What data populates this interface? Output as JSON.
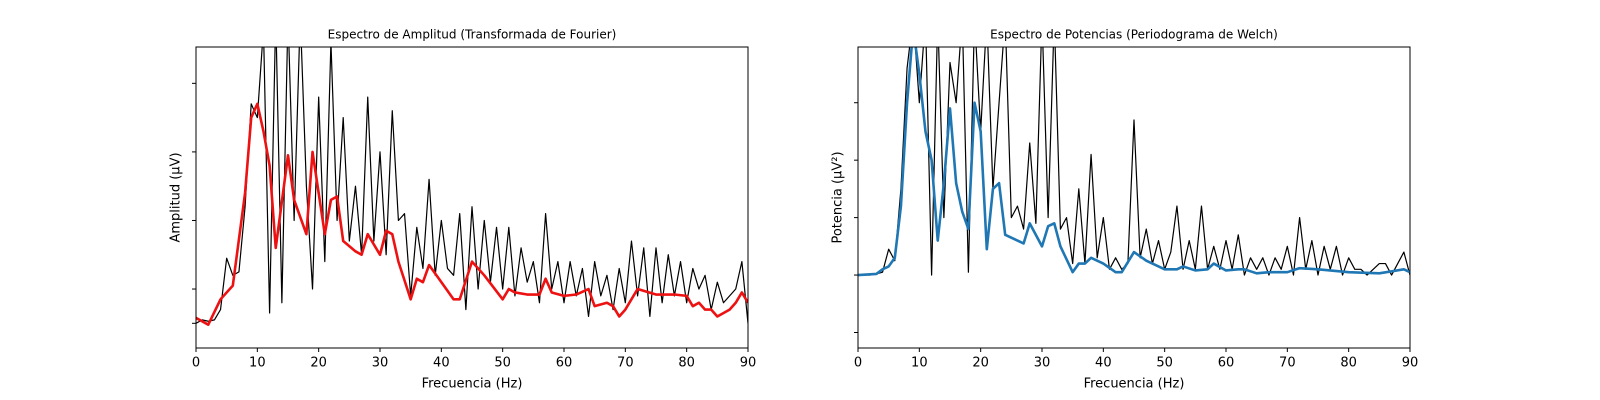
{
  "chart_data": [
    {
      "type": "line",
      "title": "Espectro de Amplitud (Transformada de Fourier)",
      "xlabel": "Frecuencia (Hz)",
      "ylabel": "Amplitud (μV)",
      "xlim": [
        0,
        90
      ],
      "xticks": [
        0,
        10,
        20,
        30,
        40,
        50,
        60,
        70,
        80,
        90
      ],
      "ylim": [
        -0.36,
        4.03
      ],
      "yticks": [
        0,
        0.5,
        1.5,
        2.5,
        3.5
      ],
      "series": [
        {
          "color": "#000000",
          "width": 1.2,
          "x": [
            0,
            1,
            2,
            3,
            4,
            5,
            6,
            7,
            8,
            9,
            10,
            11,
            12,
            13,
            14,
            15,
            16,
            17,
            18,
            19,
            20,
            21,
            22,
            23,
            24,
            25,
            26,
            27,
            28,
            29,
            30,
            31,
            32,
            33,
            34,
            35,
            36,
            37,
            38,
            39,
            40,
            41,
            42,
            43,
            44,
            45,
            46,
            47,
            48,
            49,
            50,
            51,
            52,
            53,
            54,
            55,
            56,
            57,
            58,
            59,
            60,
            61,
            62,
            63,
            64,
            65,
            66,
            67,
            68,
            69,
            70,
            71,
            72,
            73,
            74,
            75,
            76,
            77,
            78,
            79,
            80,
            81,
            82,
            83,
            84,
            85,
            86,
            87,
            88,
            89,
            90
          ],
          "values": [
            0,
            0.05,
            0.03,
            0.05,
            0.2,
            0.95,
            0.7,
            0.75,
            1.7,
            3.2,
            3.0,
            4.3,
            0.15,
            4.5,
            0.3,
            4.5,
            1.5,
            4.5,
            2.0,
            0.5,
            3.3,
            0.9,
            4.1,
            1.5,
            3.0,
            1.2,
            2.0,
            1.0,
            3.3,
            1.2,
            2.5,
            1.0,
            3.1,
            1.5,
            1.6,
            0.4,
            1.4,
            0.8,
            2.1,
            0.7,
            1.5,
            0.8,
            0.7,
            1.6,
            0.2,
            1.7,
            0.5,
            1.5,
            0.6,
            1.4,
            0.5,
            1.4,
            0.4,
            1.1,
            0.6,
            0.9,
            0.3,
            1.6,
            0.5,
            0.9,
            0.3,
            0.9,
            0.4,
            0.8,
            0.1,
            0.9,
            0.4,
            0.7,
            0.2,
            0.8,
            0.3,
            1.2,
            0.4,
            1.1,
            0.1,
            1.1,
            0.3,
            1.0,
            0.4,
            0.9,
            0.3,
            0.8,
            0.5,
            0.7,
            0.2,
            0.6,
            0.3,
            0.4,
            0.5,
            0.9,
            0.0
          ]
        },
        {
          "color": "#ee1111",
          "width": 2.6,
          "x": [
            0,
            2,
            4,
            6,
            8,
            9,
            10,
            11,
            12,
            13,
            15,
            16,
            18,
            19,
            21,
            22,
            23,
            24,
            26,
            27,
            28,
            30,
            31,
            32,
            33,
            35,
            36,
            37,
            38,
            40,
            42,
            43,
            45,
            47,
            50,
            51,
            52,
            54,
            56,
            57,
            58,
            60,
            62,
            64,
            65,
            67,
            68,
            69,
            70,
            72,
            75,
            78,
            80,
            81,
            82,
            83,
            84,
            85,
            87,
            88,
            89,
            90
          ],
          "values": [
            0.08,
            -0.02,
            0.35,
            0.55,
            1.9,
            3.0,
            3.2,
            2.8,
            2.3,
            1.1,
            2.45,
            1.8,
            1.3,
            2.5,
            1.3,
            1.8,
            1.85,
            1.2,
            1.05,
            1.0,
            1.3,
            1.0,
            1.35,
            1.3,
            0.9,
            0.35,
            0.65,
            0.6,
            0.85,
            0.6,
            0.35,
            0.35,
            0.9,
            0.7,
            0.35,
            0.5,
            0.45,
            0.42,
            0.42,
            0.65,
            0.45,
            0.4,
            0.42,
            0.5,
            0.25,
            0.3,
            0.25,
            0.1,
            0.2,
            0.5,
            0.42,
            0.42,
            0.4,
            0.25,
            0.3,
            0.2,
            0.2,
            0.1,
            0.2,
            0.3,
            0.45,
            0.3
          ]
        }
      ]
    },
    {
      "type": "line",
      "title": "Espectro de Potencias (Periodograma de Welch)",
      "xlabel": "Frecuencia (Hz)",
      "ylabel": "Potencia (μV²)",
      "xlim": [
        0,
        90
      ],
      "xticks": [
        0,
        10,
        20,
        30,
        40,
        50,
        60,
        70,
        80,
        90
      ],
      "ylim": [
        -1.27,
        3.97
      ],
      "yticks": [
        -1,
        0,
        1,
        2,
        3
      ],
      "series": [
        {
          "color": "#000000",
          "width": 1.2,
          "x": [
            0,
            1,
            2,
            3,
            4,
            5,
            6,
            7,
            8,
            9,
            10,
            11,
            12,
            13,
            14,
            15,
            16,
            17,
            18,
            19,
            20,
            21,
            22,
            23,
            24,
            25,
            26,
            27,
            28,
            29,
            30,
            31,
            32,
            33,
            34,
            35,
            36,
            37,
            38,
            39,
            40,
            41,
            42,
            43,
            44,
            45,
            46,
            47,
            48,
            49,
            50,
            51,
            52,
            53,
            54,
            55,
            56,
            57,
            58,
            59,
            60,
            61,
            62,
            63,
            64,
            65,
            66,
            67,
            68,
            69,
            70,
            71,
            72,
            73,
            74,
            75,
            76,
            77,
            78,
            79,
            80,
            81,
            82,
            83,
            84,
            85,
            86,
            87,
            88,
            89,
            90
          ],
          "values": [
            0,
            0,
            0,
            0.02,
            0.05,
            0.45,
            0.25,
            1.5,
            3.6,
            4.5,
            3.0,
            4.5,
            0.0,
            4.5,
            1.0,
            3.7,
            3.0,
            4.5,
            0.05,
            4.5,
            2.5,
            4.5,
            1.5,
            3.0,
            4.5,
            1.0,
            1.2,
            0.8,
            2.3,
            0.9,
            4.5,
            1.0,
            4.5,
            0.8,
            1.0,
            0.2,
            1.5,
            0.2,
            2.1,
            0.3,
            1.0,
            0.1,
            0.3,
            0.1,
            0.2,
            2.7,
            0.3,
            0.8,
            0.2,
            0.6,
            0.1,
            0.4,
            1.2,
            0.1,
            0.6,
            0.1,
            1.2,
            0.1,
            0.5,
            0.1,
            0.6,
            0.1,
            0.7,
            0.0,
            0.3,
            0.1,
            0.3,
            0.0,
            0.3,
            0.1,
            0.5,
            0.0,
            1.0,
            0.1,
            0.6,
            0.0,
            0.5,
            0.1,
            0.5,
            0.0,
            0.3,
            0.1,
            0.1,
            0.0,
            0.1,
            0.2,
            0.2,
            0.0,
            0.2,
            0.4,
            0.0
          ]
        },
        {
          "color": "#1f77b4",
          "width": 2.6,
          "x": [
            0,
            3,
            4,
            5,
            6,
            7,
            8,
            9,
            10,
            11,
            12,
            13,
            14,
            15,
            16,
            17,
            18,
            19,
            20,
            21,
            22,
            23,
            24,
            26,
            27,
            28,
            30,
            31,
            32,
            33,
            35,
            36,
            37,
            38,
            40,
            42,
            43,
            45,
            47,
            50,
            52,
            53,
            55,
            57,
            58,
            60,
            62,
            63,
            65,
            67,
            70,
            72,
            75,
            80,
            85,
            89,
            90
          ],
          "values": [
            0,
            0.02,
            0.1,
            0.15,
            0.3,
            1.2,
            3.0,
            4.3,
            3.5,
            2.5,
            2.0,
            0.6,
            1.6,
            2.9,
            1.6,
            1.1,
            0.8,
            3.0,
            2.5,
            0.45,
            1.5,
            1.6,
            0.7,
            0.6,
            0.55,
            0.9,
            0.5,
            0.85,
            0.9,
            0.5,
            0.05,
            0.2,
            0.2,
            0.3,
            0.2,
            0.05,
            0.05,
            0.4,
            0.25,
            0.1,
            0.1,
            0.15,
            0.08,
            0.1,
            0.2,
            0.08,
            0.1,
            0.1,
            0.03,
            0.05,
            0.05,
            0.12,
            0.1,
            0.05,
            0.03,
            0.1,
            0.05
          ]
        }
      ]
    }
  ]
}
